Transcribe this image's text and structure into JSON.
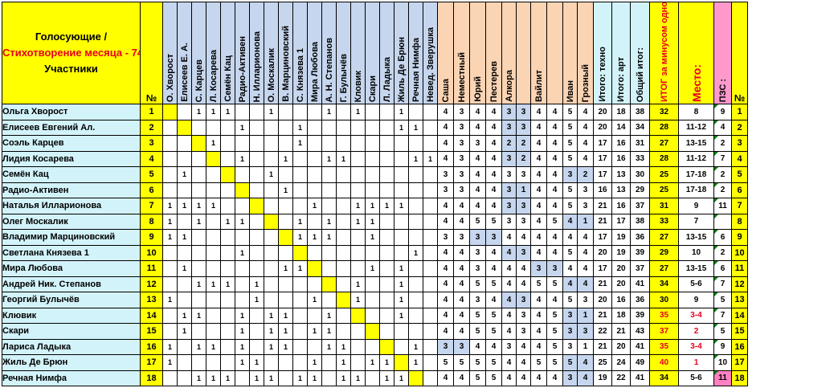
{
  "header": {
    "title_line1": "Голосующие /",
    "title_line2": "Стихотворение месяца - 74",
    "title_sep": " /",
    "title_line3": "Участники",
    "no_label": "№",
    "voter_columns": [
      "О. Хворост",
      "Елисеев Е. А.",
      "С. Карцев",
      "Л. Косарева",
      "Семён Кац",
      "Радио-Активен",
      "Н. Илларионова",
      "О. Москалик",
      "В. Марциновский",
      "С. Князева 1",
      "Мира Любова",
      "А. Н. Степанов",
      "Г. Булычёв",
      "Кловик",
      "Скари",
      "Л. Ладыка",
      "Жиль Де Брюн",
      "Речная Нимфа"
    ],
    "extra_voter": "Невед. Зверушка",
    "jury_columns": [
      "Саша",
      "Неместный",
      "Юрий",
      "Пестерев",
      "Алкора",
      "",
      "Вайлит",
      "",
      "Иван",
      "Грозный"
    ],
    "total_columns": [
      "Итого: техно",
      "Итого: арт",
      "Общий итог:"
    ],
    "itog_minus": "ИТОГ за минусом одной оценки:",
    "place_label": "Место:",
    "pzs_label": "ПЗС :",
    "no_label_right": "№"
  },
  "rows": [
    {
      "name": "Ольга Хворост",
      "num": "1",
      "votes": [
        "",
        "",
        "1",
        "1",
        "1",
        "",
        "",
        "1",
        "",
        "",
        "",
        "1",
        "",
        "1",
        "",
        "",
        "1",
        "",
        ""
      ],
      "scores": [
        "4",
        "3",
        "4",
        "4",
        "3",
        "3",
        "4",
        "4",
        "5",
        "4"
      ],
      "totals": [
        "20",
        "18",
        "38"
      ],
      "itog": "32",
      "place": "8",
      "pzs": "9",
      "rnum": "1"
    },
    {
      "name": "Елисеев Евгений Ал.",
      "num": "2",
      "votes": [
        "",
        "",
        "",
        "",
        "",
        "1",
        "",
        "",
        "",
        "1",
        "",
        "",
        "",
        "",
        "",
        "",
        "1",
        "1",
        ""
      ],
      "scores": [
        "4",
        "3",
        "4",
        "4",
        "3",
        "3",
        "4",
        "4",
        "5",
        "4"
      ],
      "totals": [
        "20",
        "14",
        "34"
      ],
      "itog": "28",
      "place": "11-12",
      "pzs": "4",
      "rnum": "2"
    },
    {
      "name": "Соэль Карцев",
      "num": "3",
      "votes": [
        "",
        "",
        "",
        "1",
        "",
        "",
        "",
        "",
        "",
        "1",
        "",
        "",
        "",
        "",
        "",
        "",
        "",
        "",
        ""
      ],
      "scores": [
        "4",
        "3",
        "3",
        "4",
        "2",
        "2",
        "4",
        "4",
        "5",
        "4"
      ],
      "totals": [
        "17",
        "16",
        "31"
      ],
      "itog": "27",
      "place": "13-15",
      "pzs": "2",
      "rnum": "3"
    },
    {
      "name": "Лидия Косарева",
      "num": "4",
      "votes": [
        "",
        "",
        "",
        "",
        "",
        "1",
        "",
        "",
        "1",
        "",
        "",
        "1",
        "1",
        "",
        "",
        "",
        "",
        "1",
        "1"
      ],
      "scores": [
        "4",
        "3",
        "4",
        "4",
        "3",
        "2",
        "4",
        "4",
        "5",
        "4"
      ],
      "totals": [
        "17",
        "16",
        "33"
      ],
      "itog": "28",
      "place": "11-12",
      "pzs": "7",
      "rnum": "4"
    },
    {
      "name": "Семён Кац",
      "num": "5",
      "votes": [
        "",
        "1",
        "",
        "",
        "",
        "",
        "",
        "1",
        "",
        "",
        "",
        "",
        "",
        "",
        "",
        "",
        "",
        "",
        ""
      ],
      "scores": [
        "3",
        "3",
        "4",
        "4",
        "3",
        "3",
        "4",
        "4",
        "3",
        "2"
      ],
      "totals": [
        "17",
        "13",
        "30"
      ],
      "itog": "25",
      "place": "17-18",
      "pzs": "2",
      "rnum": "5"
    },
    {
      "name": "Радио-Активен",
      "num": "6",
      "votes": [
        "",
        "",
        "",
        "",
        "",
        "",
        "",
        "",
        "1",
        "",
        "",
        "",
        "",
        "",
        "",
        "",
        "",
        "",
        ""
      ],
      "scores": [
        "3",
        "3",
        "4",
        "4",
        "3",
        "1",
        "4",
        "4",
        "5",
        "3"
      ],
      "totals": [
        "16",
        "13",
        "29"
      ],
      "itog": "25",
      "place": "17-18",
      "pzs": "2",
      "rnum": "6"
    },
    {
      "name": "Наталья Илларионова",
      "num": "7",
      "votes": [
        "1",
        "1",
        "1",
        "1",
        "",
        "",
        "",
        "",
        "",
        "",
        "1",
        "",
        "",
        "1",
        "1",
        "1",
        "1",
        "",
        ""
      ],
      "scores": [
        "4",
        "4",
        "4",
        "4",
        "3",
        "3",
        "4",
        "4",
        "5",
        "3"
      ],
      "totals": [
        "21",
        "16",
        "37"
      ],
      "itog": "31",
      "place": "9",
      "pzs": "11",
      "rnum": "7"
    },
    {
      "name": "Олег Москалик",
      "num": "8",
      "votes": [
        "1",
        "",
        "1",
        "",
        "1",
        "1",
        "",
        "",
        "",
        "1",
        "",
        "1",
        "",
        "1",
        "1",
        "",
        "",
        "",
        ""
      ],
      "scores": [
        "4",
        "4",
        "5",
        "5",
        "3",
        "3",
        "4",
        "5",
        "4",
        "1"
      ],
      "totals": [
        "21",
        "17",
        "38"
      ],
      "itog": "33",
      "place": "7",
      "pzs": "",
      "rnum": "8"
    },
    {
      "name": "Владимир Марциновский",
      "num": "9",
      "votes": [
        "1",
        "1",
        "",
        "",
        "",
        "",
        "",
        "",
        "",
        "1",
        "1",
        "1",
        "",
        "",
        "1",
        "",
        "",
        "",
        ""
      ],
      "scores": [
        "3",
        "3",
        "3",
        "3",
        "4",
        "4",
        "4",
        "4",
        "4",
        "4"
      ],
      "totals": [
        "17",
        "19",
        "36"
      ],
      "itog": "27",
      "place": "13-15",
      "pzs": "6",
      "rnum": "9"
    },
    {
      "name": "Светлана Князева 1",
      "num": "10",
      "votes": [
        "",
        "",
        "",
        "",
        "",
        "1",
        "",
        "",
        "",
        "",
        "",
        "",
        "",
        "",
        "",
        "",
        "",
        "1",
        ""
      ],
      "scores": [
        "4",
        "4",
        "3",
        "4",
        "4",
        "3",
        "4",
        "4",
        "5",
        "4"
      ],
      "totals": [
        "20",
        "19",
        "39"
      ],
      "itog": "29",
      "place": "10",
      "pzs": "2",
      "rnum": "10"
    },
    {
      "name": "Мира Любова",
      "num": "11",
      "votes": [
        "",
        "1",
        "",
        "",
        "",
        "",
        "",
        "",
        "1",
        "1",
        "",
        "",
        "",
        "",
        "1",
        "",
        "1",
        "",
        ""
      ],
      "scores": [
        "4",
        "4",
        "3",
        "4",
        "4",
        "4",
        "3",
        "3",
        "4",
        "4"
      ],
      "totals": [
        "17",
        "20",
        "37"
      ],
      "itog": "27",
      "place": "13-15",
      "pzs": "6",
      "rnum": "11"
    },
    {
      "name": "Андрей Ник. Степанов",
      "num": "12",
      "votes": [
        "",
        "",
        "1",
        "1",
        "1",
        "",
        "1",
        "",
        "",
        "",
        "",
        "",
        "",
        "1",
        "",
        "",
        "1",
        "",
        ""
      ],
      "scores": [
        "4",
        "4",
        "5",
        "5",
        "4",
        "4",
        "5",
        "5",
        "4",
        "4"
      ],
      "totals": [
        "21",
        "20",
        "41"
      ],
      "itog": "34",
      "place": "5-6",
      "pzs": "7",
      "rnum": "12"
    },
    {
      "name": "Георгий Булычёв",
      "num": "13",
      "votes": [
        "1",
        "",
        "",
        "",
        "",
        "",
        "1",
        "",
        "",
        "",
        "1",
        "",
        "",
        "1",
        "",
        "",
        "1",
        "",
        ""
      ],
      "scores": [
        "4",
        "4",
        "3",
        "4",
        "4",
        "3",
        "4",
        "4",
        "5",
        "3"
      ],
      "totals": [
        "20",
        "16",
        "36"
      ],
      "itog": "30",
      "place": "9",
      "pzs": "5",
      "rnum": "13"
    },
    {
      "name": "Клювик",
      "num": "14",
      "votes": [
        "",
        "1",
        "1",
        "",
        "",
        "1",
        "",
        "1",
        "1",
        "",
        "",
        "1",
        "",
        "",
        "",
        "",
        "1",
        "",
        ""
      ],
      "scores": [
        "4",
        "4",
        "5",
        "5",
        "4",
        "3",
        "4",
        "5",
        "3",
        "1"
      ],
      "totals": [
        "21",
        "18",
        "39"
      ],
      "itog": "35",
      "place": "3-4",
      "pzs": "7",
      "rnum": "14"
    },
    {
      "name": "Скари",
      "num": "15",
      "votes": [
        "",
        "1",
        "",
        "",
        "",
        "1",
        "",
        "1",
        "1",
        "",
        "1",
        "1",
        "",
        "",
        "",
        "",
        "",
        "",
        ""
      ],
      "scores": [
        "4",
        "4",
        "5",
        "5",
        "4",
        "3",
        "4",
        "5",
        "3",
        "3"
      ],
      "totals": [
        "22",
        "21",
        "43"
      ],
      "itog": "37",
      "place": "2",
      "pzs": "5",
      "rnum": "15"
    },
    {
      "name": "Лариса Ладыка",
      "num": "16",
      "votes": [
        "1",
        "",
        "1",
        "1",
        "",
        "1",
        "",
        "1",
        "1",
        "",
        "",
        "1",
        "1",
        "",
        "",
        "",
        "",
        "1",
        ""
      ],
      "scores": [
        "3",
        "3",
        "4",
        "4",
        "3",
        "4",
        "4",
        "5",
        "3",
        "1"
      ],
      "totals": [
        "21",
        "20",
        "41"
      ],
      "itog": "35",
      "place": "3-4",
      "pzs": "9",
      "rnum": "16"
    },
    {
      "name": "Жиль Де Брюн",
      "num": "17",
      "votes": [
        "1",
        "",
        "",
        "",
        "",
        "1",
        "1",
        "",
        "",
        "",
        "1",
        "",
        "1",
        "",
        "1",
        "1",
        "",
        "1",
        ""
      ],
      "scores": [
        "5",
        "5",
        "5",
        "5",
        "4",
        "4",
        "5",
        "5",
        "5",
        "4"
      ],
      "totals": [
        "25",
        "24",
        "49"
      ],
      "itog": "40",
      "place": "1",
      "pzs": "10",
      "rnum": "17"
    },
    {
      "name": "Речная Нимфа",
      "num": "18",
      "votes": [
        "",
        "",
        "1",
        "1",
        "1",
        "",
        "1",
        "1",
        "",
        "1",
        "1",
        "",
        "1",
        "1",
        "",
        "1",
        "1",
        "",
        ""
      ],
      "scores": [
        "4",
        "4",
        "5",
        "5",
        "4",
        "4",
        "4",
        "4",
        "3",
        "4"
      ],
      "totals": [
        "19",
        "22",
        "41"
      ],
      "itog": "34",
      "place": "5-6",
      "pzs": "11",
      "rnum": "18"
    }
  ]
}
